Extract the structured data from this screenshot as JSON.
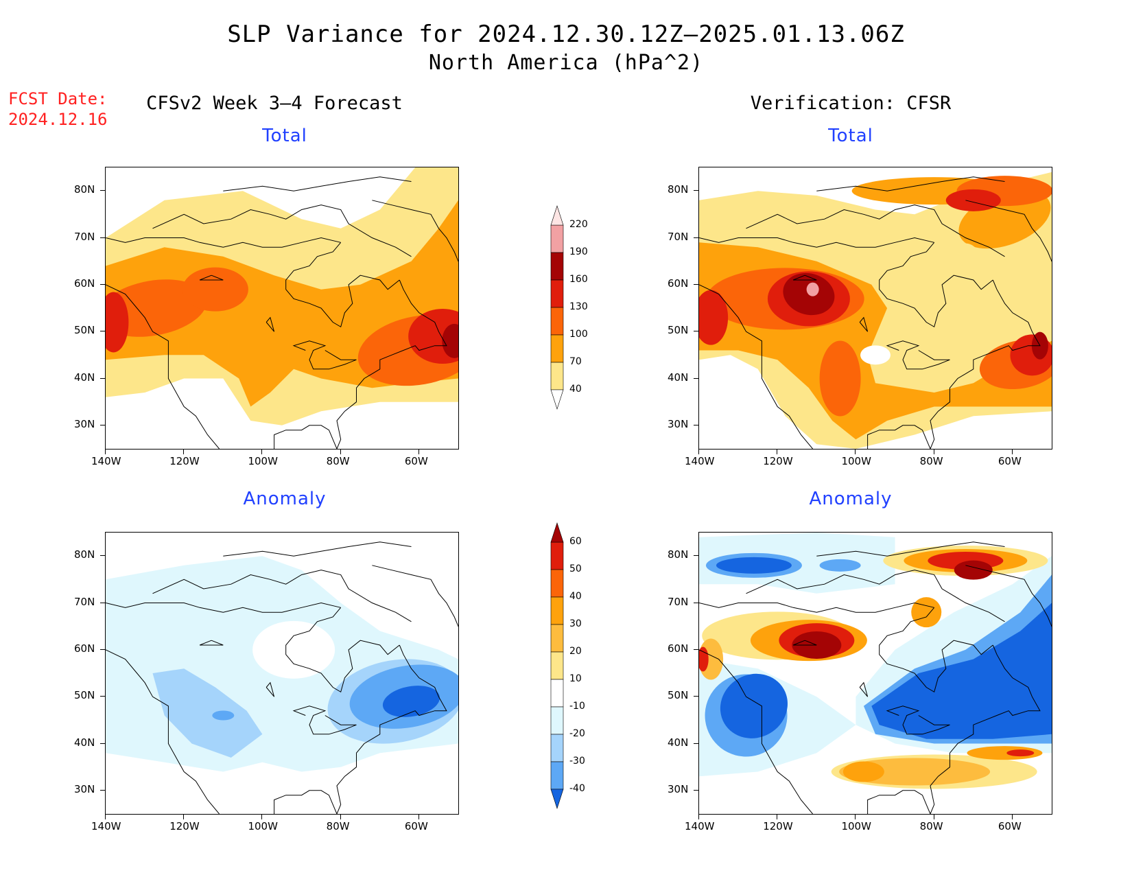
{
  "title": "SLP Variance for 2024.12.30.12Z–2025.01.13.06Z",
  "subtitle": "North America (hPa^2)",
  "fcst_date_label": "FCST Date:",
  "fcst_date_value": "2024.12.16",
  "left_column_title": "CFSv2 Week 3–4 Forecast",
  "right_column_title": "Verification: CFSR",
  "panel_titles": {
    "forecast_total": "Total",
    "forecast_anomaly": "Anomaly",
    "verification_total": "Total",
    "verification_anomaly": "Anomaly"
  },
  "axes": {
    "lat_labels": [
      "80N",
      "70N",
      "60N",
      "50N",
      "40N",
      "30N"
    ],
    "lon_labels": [
      "140W",
      "120W",
      "100W",
      "80W",
      "60W"
    ],
    "lat_range": [
      25,
      85
    ],
    "lon_range": [
      -140,
      -50
    ]
  },
  "total_colorbar": {
    "levels": [
      "40",
      "70",
      "100",
      "130",
      "160",
      "190",
      "220"
    ],
    "colors": [
      "#fde68a",
      "#fea20c",
      "#fb6509",
      "#e01e0c",
      "#a40405",
      "#f2a1a3",
      "#fde5e4"
    ]
  },
  "anomaly_colorbar": {
    "levels": [
      "60",
      "50",
      "40",
      "30",
      "20",
      "10",
      "-10",
      "-20",
      "-30",
      "-40"
    ],
    "colors": [
      "#a40405",
      "#e01e0c",
      "#fb6509",
      "#fea20c",
      "#fdbc3e",
      "#fde68a",
      "#ffffff",
      "#dff7fd",
      "#a5d4fb",
      "#5da8f5",
      "#1565e0"
    ]
  }
}
